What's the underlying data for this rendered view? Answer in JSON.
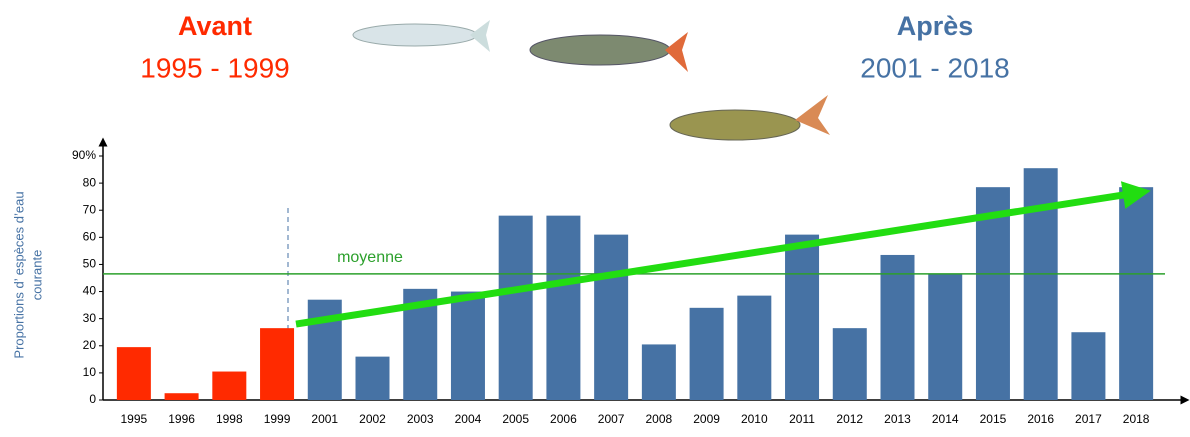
{
  "chart_data": {
    "type": "bar",
    "y_label": [
      "Proportions d’ espèces d’eau",
      "courante"
    ],
    "categories": [
      "1995",
      "1996",
      "1998",
      "1999",
      "2001",
      "2002",
      "2003",
      "2004",
      "2005",
      "2006",
      "2007",
      "2008",
      "2009",
      "2010",
      "2011",
      "2012",
      "2013",
      "2014",
      "2015",
      "2016",
      "2017",
      "2018"
    ],
    "series": [
      {
        "name": "Avant",
        "period": "1995 - 1999",
        "color": "#ff2a00",
        "values": [
          19.5,
          2.5,
          10.5,
          26.5,
          null,
          null,
          null,
          null,
          null,
          null,
          null,
          null,
          null,
          null,
          null,
          null,
          null,
          null,
          null,
          null,
          null,
          null
        ]
      },
      {
        "name": "Après",
        "period": "2001 - 2018",
        "color": "#4672a4",
        "values": [
          null,
          null,
          null,
          null,
          37,
          16,
          41,
          40,
          68,
          68,
          61,
          20.5,
          34,
          38.5,
          61,
          26.5,
          53.5,
          46.5,
          78.5,
          85.5,
          25,
          78.5
        ]
      }
    ],
    "ylim": [
      0,
      90
    ],
    "yticks": [
      0,
      10,
      20,
      30,
      40,
      50,
      60,
      70,
      80,
      {
        "value": 90,
        "label": "90%"
      }
    ],
    "mean_line": {
      "label": "moyenne",
      "value": 46.5,
      "color": "#2ca02c"
    },
    "trend": {
      "values": [
        28,
        76
      ],
      "color": "#22dd11"
    }
  }
}
